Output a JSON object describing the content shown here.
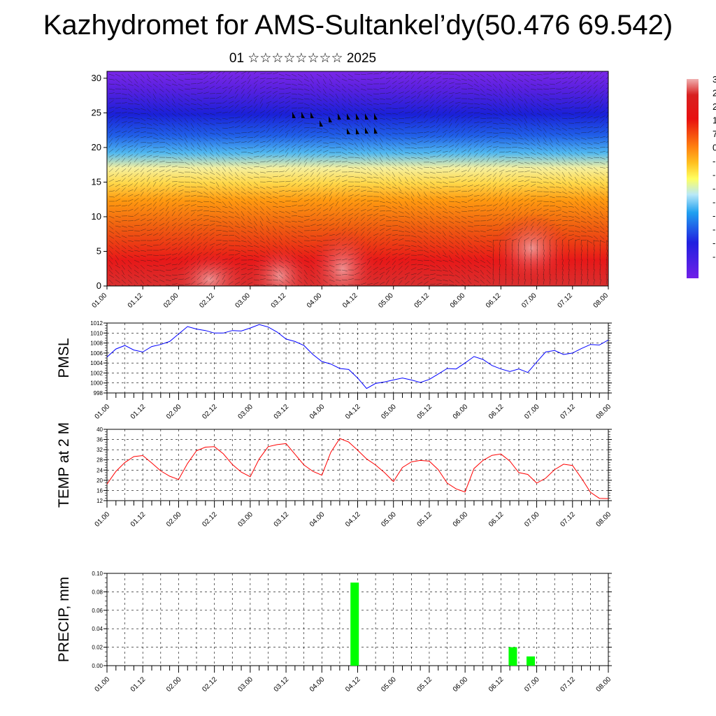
{
  "title": "Kazhydromet for AMS-Sultankel’dy(50.476 69.542)",
  "subtitle": "01 ☆☆☆☆☆☆☆☆ 2025",
  "chart_data": [
    {
      "type": "heatmap",
      "panel": "wind-temperature-cross-section",
      "y_ticks": [
        "0",
        "5",
        "10",
        "15",
        "20",
        "25",
        "30"
      ],
      "ylim": [
        0,
        31
      ],
      "x_ticks": [
        "01.00",
        "01.12",
        "02.00",
        "02.12",
        "03.00",
        "03.12",
        "04.00",
        "04.12",
        "05.00",
        "05.12",
        "06.00",
        "06.12",
        "07.00",
        "07.12",
        "08.00"
      ],
      "colorbar_labels": [
        "3",
        "2",
        "2",
        "1",
        "7",
        "0",
        "-",
        "-",
        "-",
        "-",
        "-",
        "-",
        "-",
        "-"
      ],
      "colors": [
        "#f0a0a0",
        "#e01010",
        "#ff8000",
        "#ffff40",
        "#30c0f0",
        "#2020e0",
        "#7020e0"
      ]
    },
    {
      "type": "line",
      "ylabel": "PMSL",
      "ylim": [
        998,
        1012
      ],
      "y_ticks": [
        "998",
        "1000",
        "1002",
        "1004",
        "1006",
        "1008",
        "1010",
        "1012"
      ],
      "x_ticks": [
        "01.00",
        "01.12",
        "02.00",
        "02.12",
        "03.00",
        "03.12",
        "04.00",
        "04.12",
        "05.00",
        "05.12",
        "06.00",
        "06.12",
        "07.00",
        "07.12",
        "08.00"
      ],
      "x": [
        0,
        3,
        6,
        9,
        12,
        15,
        18,
        21,
        24,
        27,
        30,
        33,
        36,
        39,
        42,
        45,
        48,
        51,
        54,
        57,
        60,
        63,
        66,
        69,
        72,
        75,
        78,
        81,
        84,
        87,
        90,
        93,
        96,
        99,
        102,
        105,
        108,
        111,
        114,
        117,
        120,
        123,
        126,
        129,
        132,
        135,
        138,
        141,
        144,
        147,
        150,
        153,
        156,
        159,
        162,
        165,
        168
      ],
      "values": [
        1005.2,
        1006.8,
        1007.5,
        1006.6,
        1006.2,
        1007.3,
        1007.7,
        1008.3,
        1009.8,
        1011.3,
        1010.8,
        1010.5,
        1010.0,
        1010.0,
        1010.5,
        1010.4,
        1011.0,
        1011.7,
        1011.2,
        1010.2,
        1008.8,
        1008.3,
        1007.5,
        1005.7,
        1004.3,
        1003.8,
        1002.9,
        1002.7,
        1001.0,
        998.9,
        999.9,
        1000.2,
        1000.6,
        1001.0,
        1000.6,
        1000.1,
        1000.7,
        1001.8,
        1002.9,
        1002.8,
        1004.0,
        1005.3,
        1004.7,
        1003.5,
        1002.8,
        1002.3,
        1002.8,
        1002.1,
        1004.2,
        1006.2,
        1006.5,
        1005.7,
        1006.0,
        1006.9,
        1007.7,
        1007.6,
        1008.6
      ],
      "color": "#0000ff"
    },
    {
      "type": "line",
      "ylabel": "TEMP at 2 M",
      "ylim": [
        12,
        40
      ],
      "y_ticks": [
        "12",
        "16",
        "20",
        "24",
        "28",
        "32",
        "36",
        "40"
      ],
      "x_ticks": [
        "01.00",
        "01.12",
        "02.00",
        "02.12",
        "03.00",
        "03.12",
        "04.00",
        "04.12",
        "05.00",
        "05.12",
        "06.00",
        "06.12",
        "07.00",
        "07.12",
        "08.00"
      ],
      "x": [
        0,
        3,
        6,
        9,
        12,
        15,
        18,
        21,
        24,
        27,
        30,
        33,
        36,
        39,
        42,
        45,
        48,
        51,
        54,
        57,
        60,
        63,
        66,
        69,
        72,
        75,
        78,
        81,
        84,
        87,
        90,
        93,
        96,
        99,
        102,
        105,
        108,
        111,
        114,
        117,
        120,
        123,
        126,
        129,
        132,
        135,
        138,
        141,
        144,
        147,
        150,
        153,
        156,
        159,
        162,
        165,
        168
      ],
      "values": [
        18.5,
        23.5,
        27,
        29.3,
        29.7,
        26.8,
        23.7,
        21.6,
        20.3,
        26.6,
        31.6,
        33.0,
        33.2,
        30.4,
        26.2,
        23.2,
        21.4,
        28.4,
        33.2,
        34.0,
        34.4,
        30.2,
        26.0,
        23.5,
        22.0,
        31.0,
        36.4,
        35.0,
        31.8,
        28.4,
        26.0,
        23.0,
        19.5,
        25.0,
        27.2,
        27.8,
        27.5,
        24.2,
        18.9,
        16.6,
        15.4,
        24.6,
        27.8,
        29.8,
        30.3,
        27.5,
        23.0,
        22.3,
        18.9,
        20.8,
        24.2,
        26.3,
        25.8,
        20.8,
        15.3,
        12.9,
        12.8
      ],
      "color": "#ff0000"
    },
    {
      "type": "bar",
      "ylabel": "PRECIP, mm",
      "ylim": [
        0,
        0.1
      ],
      "y_ticks": [
        "0.00",
        "0.02",
        "0.04",
        "0.06",
        "0.08",
        "0.10"
      ],
      "x_ticks": [
        "01.00",
        "01.12",
        "02.00",
        "02.12",
        "03.00",
        "03.12",
        "04.00",
        "04.12",
        "05.00",
        "05.12",
        "06.00",
        "06.12",
        "07.00",
        "07.12",
        "08.00"
      ],
      "x": [
        83,
        136,
        142
      ],
      "values": [
        0.09,
        0.02,
        0.01
      ],
      "color": "#00ff00"
    }
  ]
}
